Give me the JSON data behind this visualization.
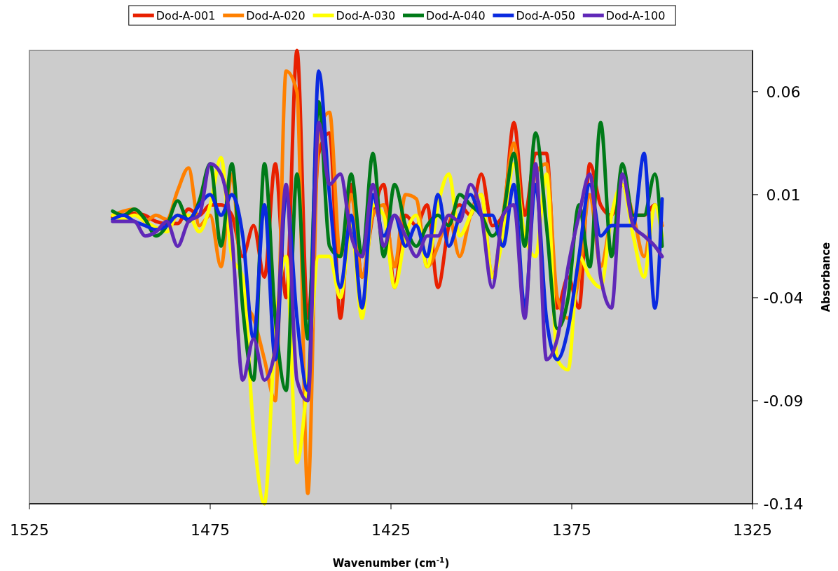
{
  "chart_data": {
    "type": "line",
    "xlabel": "Wavenumber (cm$^{-1}$)",
    "ylabel": "Absorbance",
    "legend": "top",
    "grid": false,
    "marker": "none",
    "line_style": "solid",
    "xlim": [
      1525,
      1325
    ],
    "xticks": [
      1525,
      1475,
      1425,
      1375,
      1325
    ],
    "ylim": [
      -0.14,
      0.08
    ],
    "yticks": [
      0.06,
      0.01,
      -0.04,
      -0.09,
      -0.14
    ],
    "x": [
      1502,
      1499,
      1496,
      1493,
      1490,
      1487,
      1484,
      1481,
      1478,
      1475,
      1472,
      1469,
      1466,
      1463,
      1460,
      1457,
      1454,
      1451,
      1448,
      1445,
      1442,
      1439,
      1436,
      1433,
      1430,
      1427,
      1424,
      1421,
      1418,
      1415,
      1412,
      1409,
      1406,
      1403,
      1400,
      1397,
      1394,
      1391,
      1388,
      1385,
      1382,
      1379,
      1376,
      1373,
      1370,
      1367,
      1364,
      1361,
      1358,
      1355,
      1352,
      1350
    ],
    "series": [
      {
        "name": "Dod-A-001",
        "color": "#e82000",
        "values": [
          -0.001,
          0,
          0.001,
          0,
          -0.003,
          -0.004,
          -0.004,
          0.003,
          0,
          0.005,
          0.005,
          0,
          -0.02,
          -0.005,
          -0.03,
          0.025,
          -0.04,
          0.08,
          -0.05,
          0.03,
          0.04,
          -0.05,
          0.015,
          -0.03,
          0,
          0.015,
          -0.035,
          0,
          -0.005,
          0.005,
          -0.035,
          -0.005,
          0.005,
          0,
          0.02,
          -0.005,
          0,
          0.045,
          0,
          0.03,
          0.03,
          -0.045,
          -0.03,
          -0.045,
          0.025,
          0.005,
          0,
          0.015,
          0,
          0,
          0.005,
          -0.005
        ]
      },
      {
        "name": "Dod-A-020",
        "color": "#ff8000",
        "values": [
          0,
          0.002,
          0.003,
          -0.003,
          0,
          -0.002,
          0.012,
          0.023,
          -0.005,
          0,
          -0.025,
          0.02,
          -0.04,
          -0.05,
          -0.07,
          -0.09,
          0.07,
          0.06,
          -0.135,
          0.04,
          0.05,
          -0.02,
          0.01,
          -0.03,
          0,
          0.005,
          -0.025,
          0.01,
          0.008,
          -0.025,
          -0.015,
          0,
          -0.02,
          0,
          0.01,
          -0.03,
          0,
          0.035,
          -0.01,
          0.02,
          0.025,
          -0.04,
          -0.05,
          -0.03,
          0.01,
          -0.025,
          0,
          0.015,
          0,
          -0.02,
          0.005,
          -0.005
        ]
      },
      {
        "name": "Dod-A-030",
        "color": "#ffff00",
        "values": [
          0,
          -0.002,
          0,
          -0.003,
          -0.006,
          -0.008,
          0,
          0,
          -0.008,
          0.005,
          0.028,
          -0.02,
          -0.03,
          -0.105,
          -0.14,
          -0.055,
          -0.02,
          -0.12,
          -0.078,
          -0.02,
          -0.02,
          -0.04,
          -0.005,
          -0.05,
          0.005,
          0,
          -0.035,
          -0.01,
          0,
          -0.025,
          0.005,
          0.02,
          -0.01,
          0,
          0.01,
          -0.03,
          -0.01,
          0.025,
          -0.01,
          -0.02,
          0.02,
          -0.07,
          -0.075,
          -0.02,
          -0.03,
          -0.035,
          0,
          0.015,
          -0.01,
          -0.03,
          0.005,
          -0.01
        ]
      },
      {
        "name": "Dod-A-040",
        "color": "#007a18",
        "values": [
          0.002,
          0,
          0.003,
          -0.002,
          -0.01,
          -0.005,
          0.007,
          -0.003,
          0.007,
          0.025,
          -0.015,
          0.025,
          -0.045,
          -0.08,
          0.025,
          -0.05,
          -0.085,
          0.02,
          -0.06,
          0.055,
          -0.015,
          -0.02,
          0.02,
          -0.02,
          0.03,
          -0.02,
          0.015,
          -0.005,
          -0.015,
          -0.005,
          0,
          -0.005,
          0.01,
          0.005,
          0,
          -0.01,
          0,
          0.03,
          -0.015,
          0.04,
          -0.005,
          -0.055,
          -0.04,
          0.005,
          -0.025,
          0.045,
          -0.02,
          0.025,
          0,
          0,
          0.02,
          -0.015
        ]
      },
      {
        "name": "Dod-A-050",
        "color": "#0a2ae0",
        "values": [
          -0.002,
          0,
          -0.003,
          -0.005,
          -0.007,
          -0.005,
          0,
          -0.002,
          0.005,
          0.01,
          0,
          0.01,
          -0.01,
          -0.06,
          0.005,
          -0.07,
          0.01,
          -0.05,
          -0.085,
          0.07,
          0.01,
          -0.035,
          0,
          -0.045,
          0.01,
          -0.01,
          0,
          -0.015,
          -0.005,
          -0.02,
          0.01,
          -0.015,
          0,
          0.01,
          0,
          0,
          -0.015,
          0.015,
          -0.045,
          0.015,
          -0.05,
          -0.07,
          -0.055,
          -0.02,
          0.015,
          -0.01,
          -0.005,
          -0.005,
          -0.005,
          0.03,
          -0.045,
          0.008
        ]
      },
      {
        "name": "Dod-A-100",
        "color": "#6028b8",
        "values": [
          -0.003,
          -0.003,
          -0.003,
          -0.01,
          -0.008,
          -0.003,
          -0.015,
          -0.003,
          0,
          0.025,
          0.02,
          -0.01,
          -0.08,
          -0.06,
          -0.08,
          -0.065,
          0.015,
          -0.08,
          -0.09,
          0.045,
          0.015,
          0.02,
          -0.01,
          -0.02,
          0.015,
          -0.015,
          0,
          -0.01,
          -0.02,
          -0.01,
          -0.01,
          0,
          -0.003,
          0.015,
          0,
          -0.035,
          0,
          0.005,
          -0.05,
          0.025,
          -0.07,
          -0.06,
          -0.025,
          0,
          0.02,
          -0.03,
          -0.045,
          0.02,
          -0.005,
          -0.01,
          -0.015,
          -0.02
        ]
      }
    ]
  }
}
